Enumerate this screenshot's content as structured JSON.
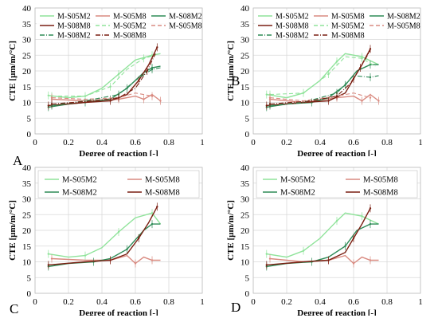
{
  "chart_data": [
    {
      "type": "line",
      "panel_label": "A",
      "xlabel": "Degree of reaction [-]",
      "ylabel": "CTE [µm/m/°C]",
      "xlim": [
        0,
        1
      ],
      "ylim": [
        0,
        40
      ],
      "xticks": [
        "0",
        "0.2",
        "0.4",
        "0.6",
        "0.8",
        "1"
      ],
      "yticks": [
        "0",
        "5",
        "10",
        "15",
        "20",
        "25",
        "30",
        "35",
        "40"
      ],
      "grid": true,
      "legend_position": "top-left",
      "series": [
        {
          "name": "M-S05M2",
          "color": "#8fe39a",
          "dash": "solid",
          "x": [
            0.08,
            0.2,
            0.3,
            0.4,
            0.5,
            0.6,
            0.7,
            0.75
          ],
          "y": [
            12.2,
            11.5,
            12.0,
            14.5,
            19.0,
            23.5,
            25.0,
            25.5
          ]
        },
        {
          "name": "M-S05M8",
          "color": "#d98a80",
          "dash": "solid",
          "x": [
            0.1,
            0.3,
            0.5,
            0.6,
            0.65,
            0.7,
            0.75
          ],
          "y": [
            11.0,
            10.5,
            11.0,
            12.0,
            11.0,
            12.5,
            10.5
          ]
        },
        {
          "name": "M-S08M2",
          "color": "#2e8b57",
          "dash": "solid",
          "x": [
            0.08,
            0.2,
            0.3,
            0.45,
            0.55,
            0.65,
            0.7,
            0.75
          ],
          "y": [
            8.5,
            9.5,
            10.0,
            11.0,
            14.5,
            19.5,
            21.0,
            21.5
          ]
        },
        {
          "name": "M-S08M8",
          "color": "#7a1f12",
          "dash": "solid",
          "x": [
            0.08,
            0.3,
            0.45,
            0.55,
            0.62,
            0.68,
            0.73
          ],
          "y": [
            9.0,
            10.0,
            10.5,
            12.5,
            17.0,
            22.0,
            27.5
          ]
        },
        {
          "name": "M-S05M2",
          "color": "#8fe39a",
          "dash": "dashed",
          "x": [
            0.1,
            0.3,
            0.45,
            0.55,
            0.65,
            0.72
          ],
          "y": [
            12.0,
            12.0,
            15.0,
            20.5,
            24.0,
            25.0
          ]
        },
        {
          "name": "M-S05M8",
          "color": "#d98a80",
          "dash": "dashed",
          "x": [
            0.1,
            0.3,
            0.5,
            0.6,
            0.7
          ],
          "y": [
            11.5,
            11.0,
            11.5,
            13.0,
            12.0
          ]
        },
        {
          "name": "M-S08M2",
          "color": "#2e8b57",
          "dash": "dashdot",
          "x": [
            0.1,
            0.3,
            0.5,
            0.6,
            0.7,
            0.75
          ],
          "y": [
            9.0,
            10.5,
            12.5,
            17.0,
            20.5,
            21.0
          ]
        },
        {
          "name": "M-S08M8",
          "color": "#7a1f12",
          "dash": "dashdot",
          "x": [
            0.1,
            0.35,
            0.5,
            0.6,
            0.67,
            0.72
          ],
          "y": [
            9.5,
            10.5,
            11.5,
            14.5,
            20.0,
            25.5
          ]
        }
      ]
    },
    {
      "type": "line",
      "panel_label": "B",
      "xlabel": "Degree of reaction [-]",
      "ylabel": "CTE [µm/m/°C]",
      "xlim": [
        0,
        1
      ],
      "ylim": [
        0,
        40
      ],
      "xticks": [
        "0",
        "0.2",
        "0.4",
        "0.6",
        "0.8",
        "1"
      ],
      "yticks": [
        "0",
        "5",
        "10",
        "15",
        "20",
        "25",
        "30",
        "35",
        "40"
      ],
      "grid": true,
      "legend_position": "top-left",
      "series": [
        {
          "name": "M-S05M2",
          "color": "#8fe39a",
          "dash": "solid",
          "x": [
            0.08,
            0.2,
            0.3,
            0.4,
            0.5,
            0.55,
            0.65,
            0.75
          ],
          "y": [
            12.5,
            11.5,
            13.0,
            17.0,
            23.0,
            25.5,
            24.5,
            22.0
          ]
        },
        {
          "name": "M-S05M8",
          "color": "#d98a80",
          "dash": "solid",
          "x": [
            0.1,
            0.3,
            0.5,
            0.6,
            0.65,
            0.7,
            0.75
          ],
          "y": [
            11.0,
            10.0,
            11.5,
            12.0,
            10.5,
            12.5,
            10.5
          ]
        },
        {
          "name": "M-S08M2",
          "color": "#2e8b57",
          "dash": "solid",
          "x": [
            0.08,
            0.2,
            0.35,
            0.45,
            0.55,
            0.62,
            0.7,
            0.75
          ],
          "y": [
            8.5,
            9.5,
            10.0,
            11.5,
            15.5,
            20.0,
            22.0,
            22.0
          ]
        },
        {
          "name": "M-S08M8",
          "color": "#7a1f12",
          "dash": "solid",
          "x": [
            0.08,
            0.3,
            0.45,
            0.55,
            0.6,
            0.65,
            0.7
          ],
          "y": [
            9.0,
            10.0,
            10.5,
            13.0,
            17.5,
            22.0,
            27.0
          ]
        },
        {
          "name": "M-S05M2",
          "color": "#8fe39a",
          "dash": "dashed",
          "x": [
            0.1,
            0.3,
            0.45,
            0.55,
            0.65,
            0.73
          ],
          "y": [
            12.5,
            13.0,
            19.0,
            24.5,
            24.0,
            21.5
          ]
        },
        {
          "name": "M-S05M8",
          "color": "#d98a80",
          "dash": "dashed",
          "x": [
            0.1,
            0.3,
            0.5,
            0.6,
            0.7
          ],
          "y": [
            11.5,
            10.5,
            12.0,
            13.0,
            11.5
          ]
        },
        {
          "name": "M-S08M2",
          "color": "#2e8b57",
          "dash": "dashdot",
          "x": [
            0.1,
            0.3,
            0.5,
            0.6,
            0.7,
            0.75
          ],
          "y": [
            9.0,
            10.0,
            13.0,
            18.5,
            18.0,
            18.5
          ]
        },
        {
          "name": "M-S08M8",
          "color": "#7a1f12",
          "dash": "dashdot",
          "x": [
            0.1,
            0.35,
            0.5,
            0.58,
            0.64,
            0.7
          ],
          "y": [
            9.5,
            10.5,
            12.0,
            16.0,
            21.0,
            26.5
          ]
        }
      ]
    },
    {
      "type": "line",
      "panel_label": "C",
      "xlabel": "Degree of reaction [-]",
      "ylabel": "CTE [µm/m/°C]",
      "xlim": [
        0,
        1
      ],
      "ylim": [
        0,
        40
      ],
      "xticks": [
        "0",
        "0.2",
        "0.4",
        "0.6",
        "0.8",
        "1"
      ],
      "yticks": [
        "0",
        "5",
        "10",
        "15",
        "20",
        "25",
        "30",
        "35",
        "40"
      ],
      "grid": true,
      "legend_position": "top",
      "series": [
        {
          "name": "M-S05M2",
          "color": "#8fe39a",
          "dash": "solid",
          "x": [
            0.08,
            0.2,
            0.3,
            0.4,
            0.5,
            0.6,
            0.7,
            0.75
          ],
          "y": [
            12.5,
            11.5,
            12.0,
            14.5,
            19.5,
            24.0,
            25.5,
            22.0
          ]
        },
        {
          "name": "M-S05M8",
          "color": "#d98a80",
          "dash": "solid",
          "x": [
            0.1,
            0.3,
            0.45,
            0.55,
            0.6,
            0.65,
            0.7,
            0.75
          ],
          "y": [
            11.0,
            10.5,
            10.5,
            12.0,
            9.5,
            11.5,
            10.5,
            10.5
          ]
        },
        {
          "name": "M-S08M2",
          "color": "#2e8b57",
          "dash": "solid",
          "x": [
            0.08,
            0.2,
            0.35,
            0.45,
            0.55,
            0.65,
            0.7,
            0.75
          ],
          "y": [
            8.5,
            9.5,
            10.0,
            11.0,
            14.0,
            20.0,
            22.0,
            22.0
          ]
        },
        {
          "name": "M-S08M8",
          "color": "#7a1f12",
          "dash": "solid",
          "x": [
            0.08,
            0.3,
            0.45,
            0.55,
            0.62,
            0.68,
            0.73
          ],
          "y": [
            9.0,
            10.0,
            10.5,
            12.5,
            17.5,
            22.5,
            27.5
          ]
        }
      ]
    },
    {
      "type": "line",
      "panel_label": "D",
      "xlabel": "Degree of reaction [-]",
      "ylabel": "CTE [µm/m/°C]",
      "xlim": [
        0,
        1
      ],
      "ylim": [
        0,
        40
      ],
      "xticks": [
        "0",
        "0.2",
        "0.4",
        "0.6",
        "0.8",
        "1"
      ],
      "yticks": [
        "0",
        "5",
        "10",
        "15",
        "20",
        "25",
        "30",
        "35",
        "40"
      ],
      "grid": true,
      "legend_position": "top",
      "series": [
        {
          "name": "M-S05M2",
          "color": "#8fe39a",
          "dash": "solid",
          "x": [
            0.08,
            0.2,
            0.3,
            0.4,
            0.5,
            0.55,
            0.65,
            0.75
          ],
          "y": [
            12.5,
            11.5,
            13.5,
            17.5,
            23.0,
            25.5,
            24.5,
            22.0
          ]
        },
        {
          "name": "M-S05M8",
          "color": "#d98a80",
          "dash": "solid",
          "x": [
            0.1,
            0.3,
            0.45,
            0.55,
            0.6,
            0.65,
            0.7,
            0.75
          ],
          "y": [
            11.0,
            10.0,
            10.5,
            12.0,
            9.5,
            11.5,
            10.5,
            10.5
          ]
        },
        {
          "name": "M-S08M2",
          "color": "#2e8b57",
          "dash": "solid",
          "x": [
            0.08,
            0.2,
            0.35,
            0.45,
            0.55,
            0.62,
            0.7,
            0.75
          ],
          "y": [
            8.5,
            9.5,
            10.0,
            11.5,
            15.0,
            20.0,
            22.0,
            22.0
          ]
        },
        {
          "name": "M-S08M8",
          "color": "#7a1f12",
          "dash": "solid",
          "x": [
            0.08,
            0.3,
            0.45,
            0.55,
            0.6,
            0.65,
            0.7
          ],
          "y": [
            9.0,
            10.0,
            10.5,
            13.0,
            17.5,
            22.0,
            27.0
          ]
        }
      ]
    }
  ]
}
